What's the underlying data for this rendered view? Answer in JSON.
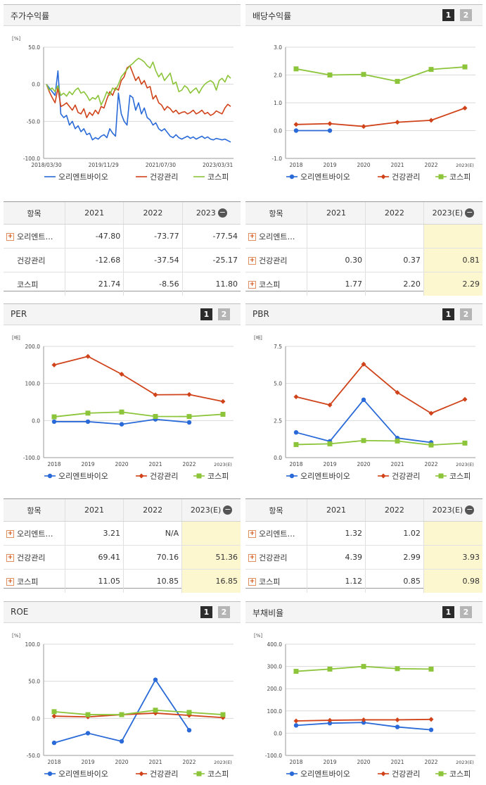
{
  "legend": [
    "오리엔트바이오",
    "건강관리",
    "코스피"
  ],
  "colors": {
    "s0": "#2a6ad8",
    "s1": "#d0431a",
    "s2": "#8cc43a"
  },
  "buttons": [
    "1",
    "2"
  ],
  "panels": {
    "stock": {
      "title": "주가수익률"
    },
    "dividend": {
      "title": "배당수익률"
    },
    "per": {
      "title": "PER"
    },
    "pbr": {
      "title": "PBR"
    },
    "roe": {
      "title": "ROE"
    },
    "debt": {
      "title": "부채비율"
    }
  },
  "tables": {
    "stock": {
      "headers": [
        "항목",
        "2021",
        "2022",
        "2023"
      ],
      "rows": [
        {
          "name": "오리엔트…",
          "plus": true,
          "values": [
            "-47.80",
            "-73.77",
            "-77.54"
          ]
        },
        {
          "name": "건강관리",
          "plus": false,
          "values": [
            "-12.68",
            "-37.54",
            "-25.17"
          ]
        },
        {
          "name": "코스피",
          "plus": false,
          "values": [
            "21.74",
            "-8.56",
            "11.80"
          ]
        }
      ]
    },
    "dividend": {
      "headers": [
        "항목",
        "2021",
        "2022",
        "2023(E)"
      ],
      "rows": [
        {
          "name": "오리엔트…",
          "plus": true,
          "values": [
            "",
            "",
            ""
          ]
        },
        {
          "name": "건강관리",
          "plus": true,
          "values": [
            "0.30",
            "0.37",
            "0.81"
          ]
        },
        {
          "name": "코스피",
          "plus": true,
          "values": [
            "1.77",
            "2.20",
            "2.29"
          ]
        }
      ]
    },
    "per": {
      "headers": [
        "항목",
        "2021",
        "2022",
        "2023(E)"
      ],
      "rows": [
        {
          "name": "오리엔트…",
          "plus": true,
          "values": [
            "3.21",
            "N/A",
            ""
          ]
        },
        {
          "name": "건강관리",
          "plus": true,
          "values": [
            "69.41",
            "70.16",
            "51.36"
          ]
        },
        {
          "name": "코스피",
          "plus": true,
          "values": [
            "11.05",
            "10.85",
            "16.85"
          ]
        }
      ]
    },
    "pbr": {
      "headers": [
        "항목",
        "2021",
        "2022",
        "2023(E)"
      ],
      "rows": [
        {
          "name": "오리엔트…",
          "plus": true,
          "values": [
            "1.32",
            "1.02",
            ""
          ]
        },
        {
          "name": "건강관리",
          "plus": true,
          "values": [
            "4.39",
            "2.99",
            "3.93"
          ]
        },
        {
          "name": "코스피",
          "plus": true,
          "values": [
            "1.12",
            "0.85",
            "0.98"
          ]
        }
      ]
    }
  },
  "chart_data": [
    {
      "id": "stock",
      "type": "line",
      "unit": "[%]",
      "ylim": [
        -100,
        50
      ],
      "yticks": [
        "50.0",
        "0.0",
        "-50.0",
        "-100.0"
      ],
      "xticks": [
        "2018/03/30",
        "2019/11/29",
        "2021/07/30",
        "2023/03/31"
      ],
      "x": [
        0,
        1,
        2,
        3,
        4,
        5,
        6,
        7,
        8,
        9,
        10,
        11,
        12,
        13,
        14,
        15,
        16,
        17,
        18,
        19,
        20,
        21,
        22,
        23,
        24,
        25,
        26,
        27,
        28,
        29,
        30,
        31,
        32,
        33,
        34,
        35,
        36,
        37,
        38,
        39,
        40,
        41,
        42,
        43,
        44,
        45,
        46,
        47,
        48,
        49,
        50,
        51,
        52,
        53,
        54,
        55,
        56,
        57,
        58,
        59,
        60,
        61,
        62,
        63,
        64
      ],
      "series": [
        {
          "name": "오리엔트바이오",
          "values": [
            0,
            -5,
            -10,
            -15,
            18,
            -40,
            -45,
            -42,
            -55,
            -50,
            -60,
            -56,
            -64,
            -60,
            -68,
            -66,
            -75,
            -72,
            -74,
            -70,
            -68,
            -72,
            -60,
            -66,
            -70,
            -12,
            -40,
            -50,
            -55,
            -15,
            -18,
            -35,
            -25,
            -40,
            -32,
            -45,
            -48,
            -55,
            -52,
            -60,
            -63,
            -60,
            -65,
            -70,
            -72,
            -68,
            -72,
            -74,
            -72,
            -70,
            -73,
            -71,
            -74,
            -72,
            -70,
            -73,
            -71,
            -74,
            -75,
            -73,
            -74,
            -75,
            -74,
            -76,
            -78
          ]
        },
        {
          "name": "건강관리",
          "values": [
            0,
            -10,
            -18,
            -25,
            -5,
            -30,
            -28,
            -25,
            -30,
            -35,
            -28,
            -38,
            -40,
            -33,
            -45,
            -38,
            -42,
            -35,
            -40,
            -30,
            -32,
            -20,
            -10,
            -15,
            -5,
            -8,
            5,
            10,
            22,
            25,
            15,
            5,
            10,
            0,
            5,
            -5,
            -3,
            -20,
            -15,
            -25,
            -28,
            -35,
            -30,
            -33,
            -38,
            -35,
            -40,
            -38,
            -37,
            -40,
            -38,
            -35,
            -40,
            -38,
            -35,
            -40,
            -38,
            -42,
            -40,
            -36,
            -38,
            -40,
            -32,
            -27,
            -30
          ]
        },
        {
          "name": "코스피",
          "values": [
            0,
            -8,
            -5,
            -10,
            -2,
            -15,
            -12,
            -16,
            -10,
            -14,
            -8,
            -5,
            -12,
            -10,
            -15,
            -22,
            -18,
            -20,
            -15,
            -28,
            -20,
            -10,
            -15,
            -5,
            -8,
            0,
            10,
            15,
            20,
            25,
            28,
            32,
            35,
            33,
            30,
            25,
            22,
            30,
            18,
            10,
            15,
            5,
            10,
            15,
            0,
            3,
            -10,
            -8,
            -2,
            -5,
            -12,
            -8,
            -5,
            -12,
            -5,
            0,
            3,
            5,
            2,
            -8,
            5,
            8,
            3,
            12,
            8
          ]
        }
      ]
    },
    {
      "id": "dividend",
      "type": "line",
      "ylim": [
        -1,
        3
      ],
      "yticks": [
        "3.0",
        "2.0",
        "1.0",
        "0.0",
        "-1.0"
      ],
      "categories": [
        "2018",
        "2019",
        "2020",
        "2021",
        "2022",
        "2023(E)"
      ],
      "series": [
        {
          "name": "오리엔트바이오",
          "values": [
            0,
            0,
            null,
            null,
            null,
            null
          ]
        },
        {
          "name": "건강관리",
          "values": [
            0.22,
            0.25,
            0.15,
            0.3,
            0.37,
            0.81
          ]
        },
        {
          "name": "코스피",
          "values": [
            2.22,
            2.0,
            2.02,
            1.77,
            2.2,
            2.29
          ]
        }
      ]
    },
    {
      "id": "per",
      "type": "line",
      "unit": "[배]",
      "ylim": [
        -100,
        200
      ],
      "yticks": [
        "200.0",
        "100.0",
        "0.0",
        "-100.0"
      ],
      "categories": [
        "2018",
        "2019",
        "2020",
        "2021",
        "2022",
        "2023(E)"
      ],
      "series": [
        {
          "name": "오리엔트바이오",
          "values": [
            -3,
            -3,
            -10,
            3.21,
            -5,
            null
          ]
        },
        {
          "name": "건강관리",
          "values": [
            150,
            173,
            125,
            69.41,
            70.16,
            51.36
          ]
        },
        {
          "name": "코스피",
          "values": [
            10,
            20,
            23,
            11.05,
            10.85,
            16.85
          ]
        }
      ]
    },
    {
      "id": "pbr",
      "type": "line",
      "unit": "[배]",
      "ylim": [
        0,
        7.5
      ],
      "yticks": [
        "7.5",
        "5.0",
        "2.5",
        "0.0"
      ],
      "categories": [
        "2018",
        "2019",
        "2020",
        "2021",
        "2022",
        "2023(E)"
      ],
      "series": [
        {
          "name": "오리엔트바이오",
          "values": [
            1.7,
            1.1,
            3.9,
            1.32,
            1.02,
            null
          ]
        },
        {
          "name": "건강관리",
          "values": [
            4.1,
            3.55,
            6.3,
            4.39,
            2.99,
            3.93
          ]
        },
        {
          "name": "코스피",
          "values": [
            0.88,
            0.93,
            1.15,
            1.12,
            0.85,
            0.98
          ]
        }
      ]
    },
    {
      "id": "roe",
      "type": "line",
      "unit": "[%]",
      "ylim": [
        -50,
        100
      ],
      "yticks": [
        "100.0",
        "50.0",
        "0.0",
        "-50.0"
      ],
      "categories": [
        "2018",
        "2019",
        "2020",
        "2021",
        "2022",
        "2023(E)"
      ],
      "series": [
        {
          "name": "오리엔트바이오",
          "values": [
            -33,
            -20,
            -31,
            52,
            -16,
            null
          ]
        },
        {
          "name": "건강관리",
          "values": [
            3,
            2,
            5,
            7,
            4,
            1
          ]
        },
        {
          "name": "코스피",
          "values": [
            9,
            5,
            5,
            11,
            8,
            5
          ]
        }
      ]
    },
    {
      "id": "debt",
      "type": "line",
      "unit": "[%]",
      "ylim": [
        -100,
        400
      ],
      "yticks": [
        "400.0",
        "300.0",
        "200.0",
        "100.0",
        "0.0",
        "-100.0"
      ],
      "categories": [
        "2018",
        "2019",
        "2020",
        "2021",
        "2022",
        "2023(E)"
      ],
      "series": [
        {
          "name": "오리엔트바이오",
          "values": [
            35,
            45,
            48,
            28,
            15,
            null
          ]
        },
        {
          "name": "건강관리",
          "values": [
            55,
            58,
            60,
            60,
            62,
            null
          ]
        },
        {
          "name": "코스피",
          "values": [
            278,
            288,
            300,
            290,
            288,
            null
          ]
        }
      ]
    }
  ]
}
